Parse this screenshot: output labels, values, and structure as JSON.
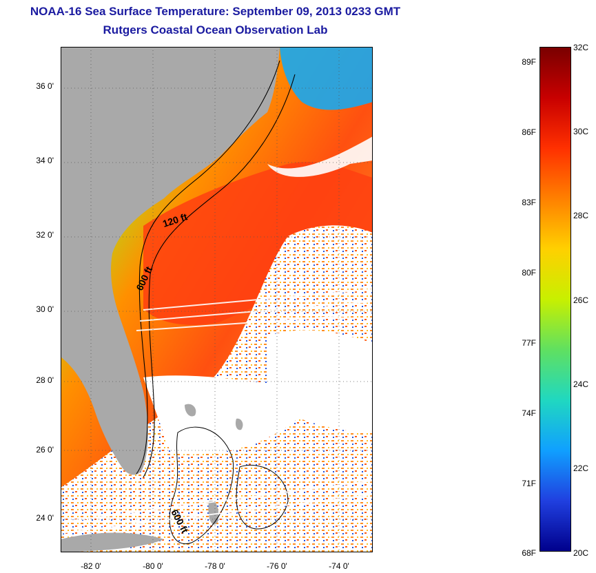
{
  "title": {
    "line1": "NOAA-16 Sea Surface Temperature:  September 09, 2013 0233 GMT",
    "line2": "Rutgers Coastal Ocean Observation Lab"
  },
  "map": {
    "y_ticks": [
      "36 0'",
      "34 0'",
      "32 0'",
      "30 0'",
      "28 0'",
      "26 0'",
      "24 0'"
    ],
    "x_ticks": [
      "-82 0'",
      "-80 0'",
      "-78 0'",
      "-76 0'",
      "-74 0'"
    ],
    "contour_labels": [
      "120 ft",
      "600 ft",
      "600 ft"
    ],
    "colors": {
      "land": "#a9a9a9",
      "no_data": "#ffffff"
    }
  },
  "colorbar": {
    "fahrenheit": [
      "89F",
      "86F",
      "83F",
      "80F",
      "77F",
      "74F",
      "71F",
      "68F"
    ],
    "celsius": [
      "32C",
      "30C",
      "28C",
      "26C",
      "24C",
      "22C",
      "20C"
    ],
    "gradient": [
      "#7a0000",
      "#c80000",
      "#ff3000",
      "#ff8000",
      "#ffd000",
      "#c8f000",
      "#60e060",
      "#20d8c0",
      "#10a0ff",
      "#2040e0",
      "#00008c"
    ]
  }
}
